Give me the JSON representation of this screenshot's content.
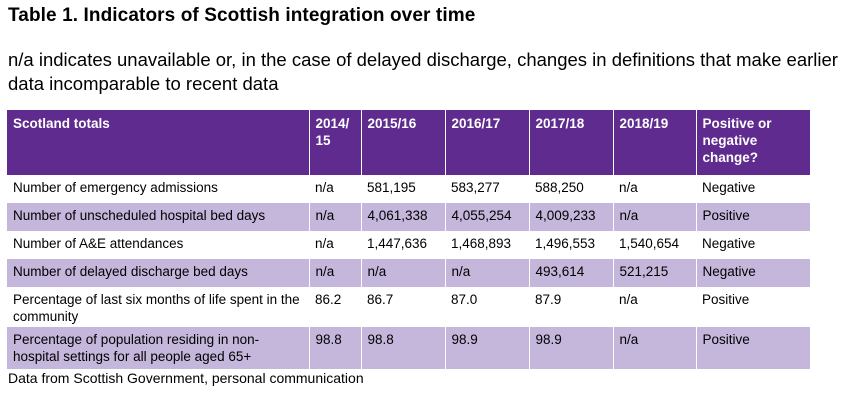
{
  "title": "Table 1. Indicators of Scottish integration over time",
  "subtitle": "n/a indicates unavailable or, in the case of delayed discharge, changes in definitions that make earlier data incomparable to recent data",
  "table": {
    "headers": [
      "Scotland totals",
      "2014/ 15",
      "2015/16",
      "2016/17",
      "2017/18",
      "2018/19",
      "Positive or negative change?"
    ],
    "rows": [
      [
        "Number of emergency admissions",
        "n/a",
        "581,195",
        "583,277",
        "588,250",
        "n/a",
        "Negative"
      ],
      [
        "Number of unscheduled hospital bed days",
        "n/a",
        "4,061,338",
        "4,055,254",
        "4,009,233",
        "n/a",
        "Positive"
      ],
      [
        "Number of A&E attendances",
        "n/a",
        "1,447,636",
        "1,468,893",
        "1,496,553",
        "1,540,654",
        "Negative"
      ],
      [
        "Number of delayed discharge bed days",
        "n/a",
        "n/a",
        "n/a",
        "493,614",
        "521,215",
        "Negative"
      ],
      [
        "Percentage of last six months of life spent in the community",
        "86.2",
        "86.7",
        "87.0",
        "87.9",
        "n/a",
        "Positive"
      ],
      [
        "Percentage of population residing in non-hospital settings for all people aged 65+",
        "98.8",
        "98.8",
        "98.9",
        "98.9",
        "n/a",
        "Positive"
      ]
    ]
  },
  "footnote": "Data from Scottish Government, personal communication",
  "colors": {
    "header_bg": "#5f2b8f",
    "stripe_bg": "#c5b6dc"
  }
}
